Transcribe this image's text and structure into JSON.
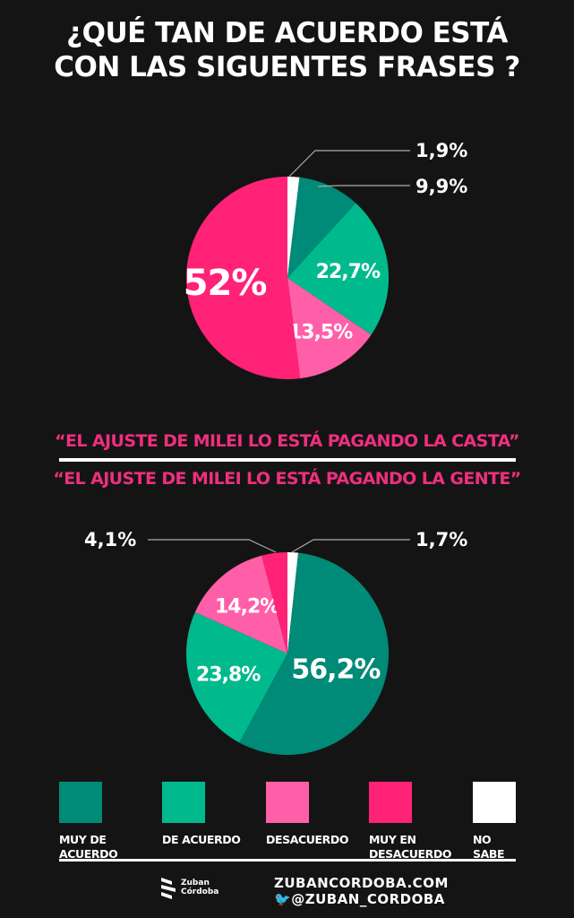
{
  "title_line1": "¿QUÉ TAN DE ACUERDO ESTÁ",
  "title_line2": "CON LAS SIGUENTES FRASES ?",
  "colors": {
    "muy_de_acuerdo": "#008a78",
    "de_acuerdo": "#00ba8e",
    "desacuerdo": "#ff5fa8",
    "muy_en_desacuerdo": "#ff2277",
    "no_sabe": "#ffffff",
    "caption": "#ee2f7e",
    "background": "#151414"
  },
  "chart_data": [
    {
      "type": "pie",
      "title": "“EL AJUSTE DE MILEI LO ESTÁ PAGANDO  LA CASTA”",
      "categories": [
        "NO SABE",
        "MUY DE ACUERDO",
        "DE ACUERDO",
        "DESACUERDO",
        "MUY EN DESACUERDO"
      ],
      "values": [
        1.9,
        9.9,
        22.7,
        13.5,
        52
      ],
      "labels": [
        "1,9%",
        "9,9%",
        "22,7%",
        "13,5%",
        "52%"
      ]
    },
    {
      "type": "pie",
      "title": "“EL AJUSTE DE MILEI LO ESTÁ PAGANDO LA GENTE”",
      "categories": [
        "NO SABE",
        "MUY DE ACUERDO",
        "DE ACUERDO",
        "DESACUERDO",
        "MUY EN DESACUERDO"
      ],
      "values": [
        1.7,
        56.2,
        23.8,
        14.2,
        4.1
      ],
      "labels": [
        "1,7%",
        "56,2%",
        "23,8%",
        "14,2%",
        "4,1%"
      ]
    }
  ],
  "legend": [
    {
      "label": "MUY DE\nACUERDO",
      "key": "muy_de_acuerdo"
    },
    {
      "label": "DE ACUERDO",
      "key": "de_acuerdo"
    },
    {
      "label": "DESACUERDO",
      "key": "desacuerdo"
    },
    {
      "label": "MUY EN\nDESACUERDO",
      "key": "muy_en_desacuerdo"
    },
    {
      "label": "NO\nSABE",
      "key": "no_sabe"
    }
  ],
  "footer": {
    "logo_name1": "Zuban",
    "logo_name2": "Córdoba",
    "website": "ZUBANCORDOBA.COM",
    "twitter_handle": "@ZUBAN_CORDOBA",
    "twitter_icon": "twitter-bird-icon"
  }
}
